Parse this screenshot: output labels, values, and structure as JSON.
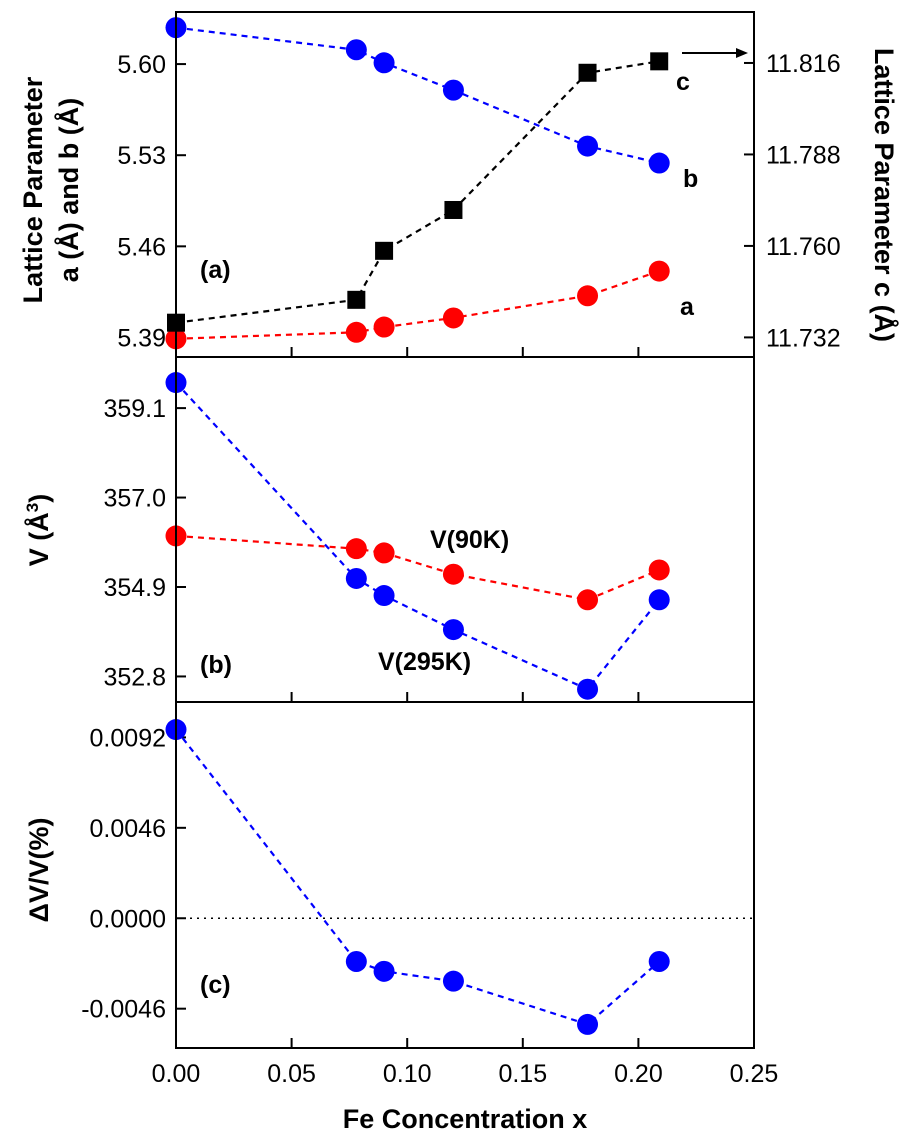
{
  "chart_data": [
    {
      "id": "a",
      "type": "scatter",
      "panel_label": "(a)",
      "ylabel_lines": [
        "Lattice Parameter",
        "a (Å) and b (Å)"
      ],
      "y2label": "Lattice Parameter c (Å)",
      "ylim": [
        5.375,
        5.64
      ],
      "yticks": [
        5.39,
        5.46,
        5.53,
        5.6
      ],
      "ytick_labels": [
        "5.39",
        "5.46",
        "5.53",
        "5.60"
      ],
      "y2lim": [
        11.726,
        11.8316
      ],
      "y2ticks": [
        11.732,
        11.76,
        11.788,
        11.816
      ],
      "y2tick_labels": [
        "11.732",
        "11.760",
        "11.788",
        "11.816"
      ],
      "series": [
        {
          "name": "b",
          "axis": "left",
          "marker": "circle",
          "color": "#0000ff",
          "x": [
            0.0,
            0.078,
            0.09,
            0.12,
            0.178,
            0.209
          ],
          "y": [
            5.628,
            5.611,
            5.601,
            5.58,
            5.537,
            5.524
          ]
        },
        {
          "name": "a",
          "axis": "left",
          "marker": "circle",
          "color": "#ff0000",
          "x": [
            0.0,
            0.078,
            0.09,
            0.12,
            0.178,
            0.209
          ],
          "y": [
            5.389,
            5.394,
            5.398,
            5.405,
            5.422,
            5.441
          ]
        },
        {
          "name": "c",
          "axis": "right",
          "marker": "square",
          "color": "#000000",
          "x": [
            0.0,
            0.078,
            0.09,
            0.12,
            0.178,
            0.209
          ],
          "y": [
            11.7365,
            11.7435,
            11.7585,
            11.771,
            11.813,
            11.8165
          ]
        }
      ]
    },
    {
      "id": "b",
      "type": "scatter",
      "panel_label": "(b)",
      "ylabel": "V (Å",
      "ylabel_sup": "3",
      "ylabel_close": ")",
      "ylim": [
        352.2,
        360.3
      ],
      "yticks": [
        352.8,
        354.9,
        357.0,
        359.1
      ],
      "ytick_labels": [
        "352.8",
        "354.9",
        "357.0",
        "359.1"
      ],
      "series": [
        {
          "name": "V(90K)",
          "color": "#ff0000",
          "x": [
            0.0,
            0.078,
            0.09,
            0.12,
            0.178,
            0.209
          ],
          "y": [
            356.1,
            355.8,
            355.7,
            355.2,
            354.6,
            355.3
          ]
        },
        {
          "name": "V(295K)",
          "color": "#0000ff",
          "x": [
            0.0,
            0.078,
            0.09,
            0.12,
            0.178,
            0.209
          ],
          "y": [
            359.7,
            355.1,
            354.7,
            353.9,
            352.5,
            354.6
          ]
        }
      ]
    },
    {
      "id": "c",
      "type": "scatter",
      "panel_label": "(c)",
      "ylabel": "ΔV/V(%)",
      "ylim": [
        -0.0066,
        0.011
      ],
      "yticks": [
        -0.0046,
        0.0,
        0.0046,
        0.0092
      ],
      "ytick_labels": [
        "-0.0046",
        "0.0000",
        "0.0046",
        "0.0092"
      ],
      "series": [
        {
          "name": "ΔV/V",
          "color": "#0000ff",
          "x": [
            0.0,
            0.078,
            0.09,
            0.12,
            0.178,
            0.209
          ],
          "y": [
            0.0096,
            -0.0022,
            -0.0027,
            -0.0032,
            -0.0054,
            -0.0022
          ]
        }
      ]
    }
  ],
  "x_axis": {
    "xlabel": "Fe Concentration x",
    "xlim": [
      0.0,
      0.25
    ],
    "xticks": [
      0.0,
      0.05,
      0.1,
      0.15,
      0.2,
      0.25
    ],
    "xtick_labels": [
      "0.00",
      "0.05",
      "0.10",
      "0.15",
      "0.20",
      "0.25"
    ]
  }
}
